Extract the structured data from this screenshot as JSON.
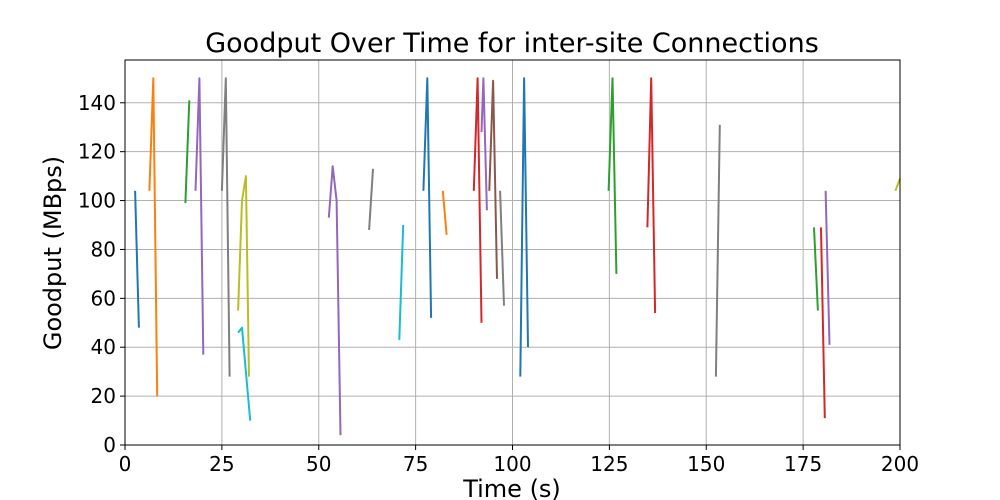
{
  "chart_data": {
    "type": "line",
    "title": "Goodput Over Time for inter-site Connections",
    "xlabel": "Time (s)",
    "ylabel": "Goodput (MBps)",
    "xlim": [
      0,
      200
    ],
    "ylim": [
      0,
      157.5
    ],
    "xticks": [
      0,
      25,
      50,
      75,
      100,
      125,
      150,
      175,
      200
    ],
    "yticks": [
      0,
      20,
      40,
      60,
      80,
      100,
      120,
      140
    ],
    "grid": true,
    "legend": "none",
    "colors": [
      "#1f77b4",
      "#ff7f0e",
      "#2ca02c",
      "#d62728",
      "#9467bd",
      "#8c564b",
      "#e377c2",
      "#7f7f7f",
      "#bcbd22",
      "#17becf"
    ],
    "series": [
      {
        "color": "#1f77b4",
        "points": [
          [
            2.6,
            104
          ],
          [
            3.6,
            48
          ]
        ]
      },
      {
        "color": "#ff7f0e",
        "points": [
          [
            6.3,
            104
          ],
          [
            7.3,
            150
          ],
          [
            8.3,
            20
          ]
        ]
      },
      {
        "color": "#2ca02c",
        "points": [
          [
            15.6,
            99
          ],
          [
            16.6,
            141
          ]
        ]
      },
      {
        "color": "#9467bd",
        "points": [
          [
            18.2,
            104
          ],
          [
            19.2,
            150
          ],
          [
            20.2,
            37
          ]
        ]
      },
      {
        "color": "#7f7f7f",
        "points": [
          [
            25.0,
            104
          ],
          [
            26.0,
            150
          ],
          [
            27.0,
            28
          ]
        ]
      },
      {
        "color": "#bcbd22",
        "points": [
          [
            29.2,
            55
          ],
          [
            30.2,
            100
          ],
          [
            31.2,
            110
          ],
          [
            32.0,
            28
          ]
        ]
      },
      {
        "color": "#17becf",
        "points": [
          [
            29.2,
            46
          ],
          [
            30.2,
            48
          ],
          [
            32.3,
            10
          ]
        ]
      },
      {
        "color": "#9467bd",
        "points": [
          [
            52.6,
            93
          ],
          [
            53.6,
            114
          ],
          [
            54.6,
            100
          ],
          [
            55.6,
            4
          ]
        ]
      },
      {
        "color": "#7f7f7f",
        "points": [
          [
            63.0,
            88
          ],
          [
            64.0,
            113
          ]
        ]
      },
      {
        "color": "#17becf",
        "points": [
          [
            70.8,
            43
          ],
          [
            71.8,
            90
          ]
        ]
      },
      {
        "color": "#1f77b4",
        "points": [
          [
            77.0,
            104
          ],
          [
            78.0,
            150
          ],
          [
            79.0,
            52
          ]
        ]
      },
      {
        "color": "#ff7f0e",
        "points": [
          [
            82.0,
            104
          ],
          [
            83.0,
            86
          ]
        ]
      },
      {
        "color": "#d62728",
        "points": [
          [
            90.0,
            104
          ],
          [
            91.0,
            150
          ],
          [
            92.0,
            50
          ]
        ]
      },
      {
        "color": "#9467bd",
        "points": [
          [
            92.0,
            128
          ],
          [
            92.5,
            150
          ],
          [
            93.4,
            96
          ]
        ]
      },
      {
        "color": "#8c564b",
        "points": [
          [
            94.0,
            104
          ],
          [
            95.0,
            149
          ],
          [
            96.0,
            68
          ]
        ]
      },
      {
        "color": "#7f7f7f",
        "points": [
          [
            96.8,
            104
          ],
          [
            97.8,
            57
          ]
        ]
      },
      {
        "color": "#1f77b4",
        "points": [
          [
            102.0,
            28
          ],
          [
            103.0,
            150
          ],
          [
            104.0,
            40
          ]
        ]
      },
      {
        "color": "#2ca02c",
        "points": [
          [
            124.8,
            104
          ],
          [
            125.8,
            150
          ],
          [
            126.8,
            70
          ]
        ]
      },
      {
        "color": "#d62728",
        "points": [
          [
            134.8,
            89
          ],
          [
            135.8,
            150
          ],
          [
            136.8,
            54
          ]
        ]
      },
      {
        "color": "#7f7f7f",
        "points": [
          [
            152.5,
            28
          ],
          [
            153.5,
            131
          ]
        ]
      },
      {
        "color": "#2ca02c",
        "points": [
          [
            177.8,
            89
          ],
          [
            178.8,
            55
          ]
        ]
      },
      {
        "color": "#d62728",
        "points": [
          [
            179.6,
            89
          ],
          [
            180.6,
            11
          ]
        ]
      },
      {
        "color": "#9467bd",
        "points": [
          [
            180.8,
            104
          ],
          [
            181.8,
            41
          ]
        ]
      },
      {
        "color": "#bcbd22",
        "points": [
          [
            198.8,
            104
          ],
          [
            200.0,
            109
          ]
        ]
      }
    ]
  }
}
